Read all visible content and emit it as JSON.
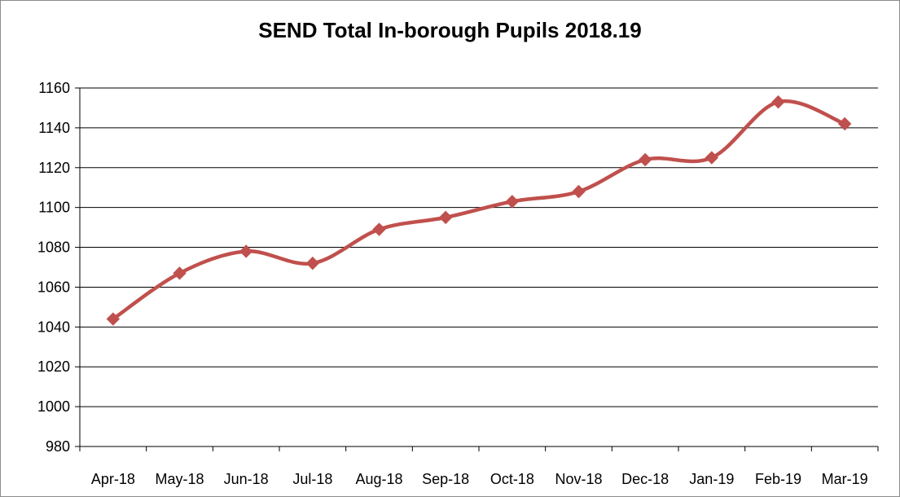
{
  "chart_data": {
    "type": "line",
    "title": "SEND Total In-borough Pupils 2018.19",
    "categories": [
      "Apr-18",
      "May-18",
      "Jun-18",
      "Jul-18",
      "Aug-18",
      "Sep-18",
      "Oct-18",
      "Nov-18",
      "Dec-18",
      "Jan-19",
      "Feb-19",
      "Mar-19"
    ],
    "series": [
      {
        "values": [
          1044,
          1067,
          1078,
          1072,
          1089,
          1095,
          1103,
          1108,
          1124,
          1125,
          1153,
          1142
        ],
        "color": "#c0504d",
        "marker": "diamond",
        "smooth": true
      }
    ],
    "ylim": [
      980,
      1160
    ],
    "yticks": [
      980,
      1000,
      1020,
      1040,
      1060,
      1080,
      1100,
      1120,
      1140,
      1160
    ],
    "grid": true,
    "legend": "none"
  }
}
